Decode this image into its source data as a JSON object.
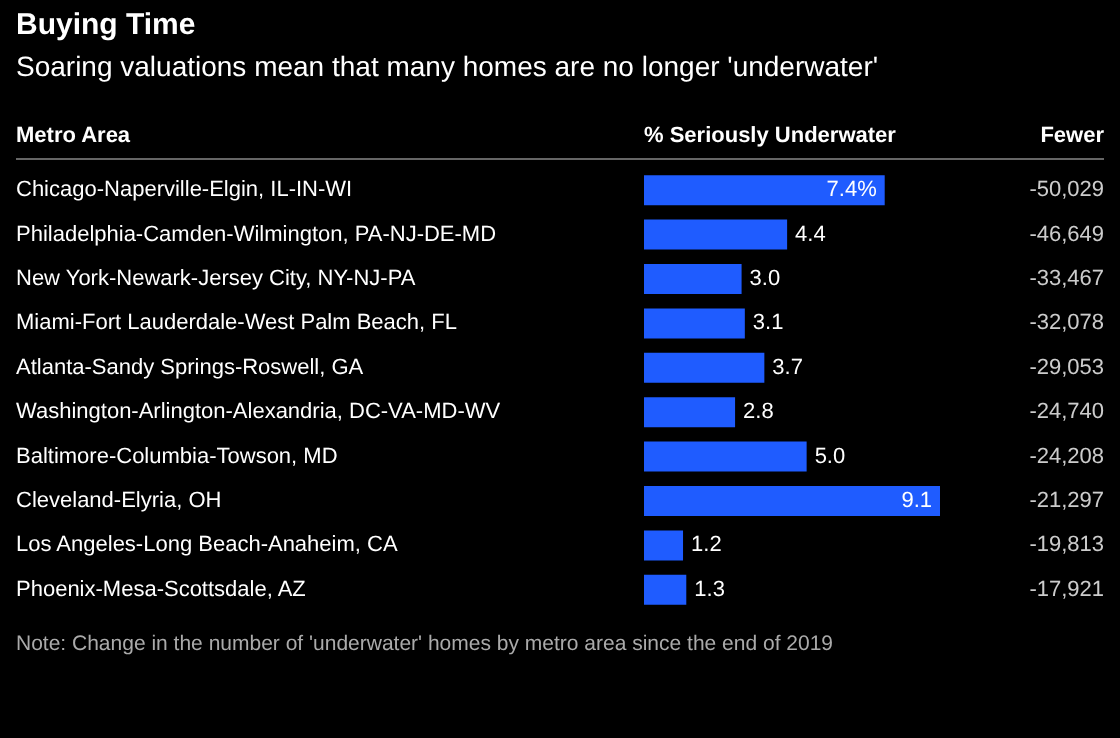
{
  "chart_data": [
    {
      "type": "bar",
      "orientation": "horizontal",
      "title": "Buying Time",
      "subtitle": "Soaring valuations mean that many homes are no longer 'underwater'",
      "ylabel": "Metro Area",
      "xlabel": "% Seriously Underwater",
      "categories": [
        "Chicago-Naperville-Elgin, IL-IN-WI",
        "Philadelphia-Camden-Wilmington, PA-NJ-DE-MD",
        "New York-Newark-Jersey City, NY-NJ-PA",
        "Miami-Fort Lauderdale-West Palm Beach, FL",
        "Atlanta-Sandy Springs-Roswell, GA",
        "Washington-Arlington-Alexandria, DC-VA-MD-WV",
        "Baltimore-Columbia-Towson, MD",
        "Cleveland-Elyria, OH",
        "Los Angeles-Long Beach-Anaheim, CA",
        "Phoenix-Mesa-Scottsdale, AZ"
      ],
      "values": [
        7.4,
        4.4,
        3.0,
        3.1,
        3.7,
        2.8,
        5.0,
        9.1,
        1.2,
        1.3
      ],
      "value_labels": [
        "7.4%",
        "4.4",
        "3.0",
        "3.1",
        "3.7",
        "2.8",
        "5.0",
        "9.1",
        "1.2",
        "1.3"
      ],
      "color": "#1f5cff",
      "annotations": [
        "Note: Change in the number of 'underwater' homes by metro area since the end of 2019"
      ]
    },
    {
      "type": "other",
      "xlabel": "Fewer",
      "categories": [
        null,
        null,
        null,
        null,
        null,
        null,
        null,
        null,
        null,
        null
      ],
      "values": [
        -50029,
        -46649,
        -33467,
        -32078,
        -29053,
        -24740,
        -24208,
        -21297,
        -19813,
        -17921
      ],
      "value_labels": [
        "-50,029",
        "-46,649",
        "-33,467",
        "-32,078",
        "-29,053",
        "-24,740",
        "-24,208",
        "-21,297",
        "-19,813",
        "-17,921"
      ]
    }
  ]
}
